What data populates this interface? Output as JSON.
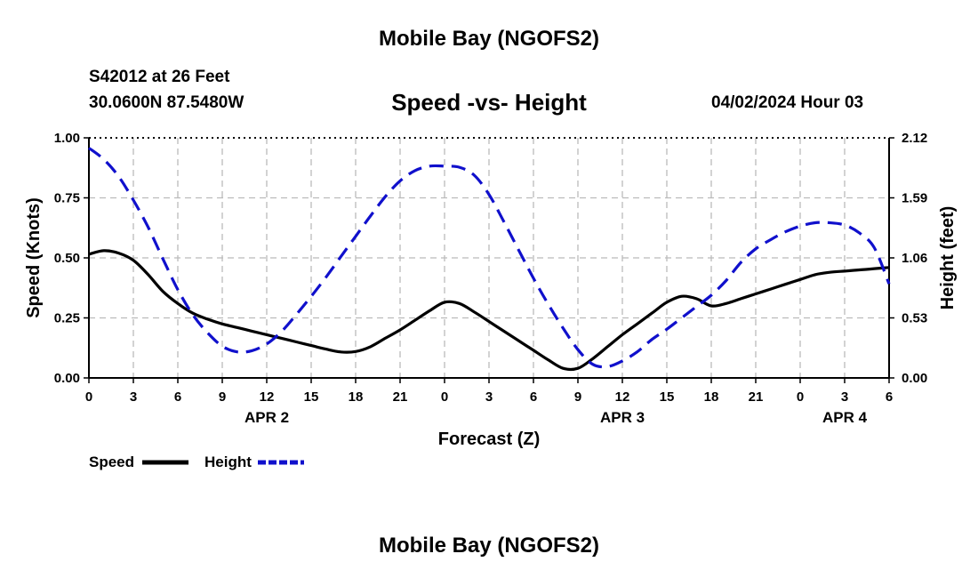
{
  "header": {
    "title": "Mobile Bay (NGOFS2)",
    "station": "S42012 at 26 Feet",
    "coords": "30.0600N  87.5480W",
    "chart_title": "Speed -vs- Height",
    "datetime": "04/02/2024 Hour 03"
  },
  "footer": {
    "title": "Mobile Bay (NGOFS2)"
  },
  "colors": {
    "speed": "#000000",
    "height": "#1010cc",
    "grid": "#bbbbbb"
  },
  "chart_data": {
    "type": "line",
    "title": "Speed -vs- Height",
    "xlabel": "Forecast (Z)",
    "ylabel_left": "Speed (Knots)",
    "ylabel_right": "Height (feet)",
    "x_range_hours": [
      0,
      54
    ],
    "x_ticks": [
      {
        "h": 0,
        "label": "0"
      },
      {
        "h": 3,
        "label": "3"
      },
      {
        "h": 6,
        "label": "6"
      },
      {
        "h": 9,
        "label": "9"
      },
      {
        "h": 12,
        "label": "12"
      },
      {
        "h": 15,
        "label": "15"
      },
      {
        "h": 18,
        "label": "18"
      },
      {
        "h": 21,
        "label": "21"
      },
      {
        "h": 24,
        "label": "0"
      },
      {
        "h": 27,
        "label": "3"
      },
      {
        "h": 30,
        "label": "6"
      },
      {
        "h": 33,
        "label": "9"
      },
      {
        "h": 36,
        "label": "12"
      },
      {
        "h": 39,
        "label": "15"
      },
      {
        "h": 42,
        "label": "18"
      },
      {
        "h": 45,
        "label": "21"
      },
      {
        "h": 48,
        "label": "0"
      },
      {
        "h": 51,
        "label": "3"
      },
      {
        "h": 54,
        "label": "6"
      }
    ],
    "date_labels": [
      {
        "h": 12,
        "label": "APR 2"
      },
      {
        "h": 36,
        "label": "APR 3"
      },
      {
        "h": 51,
        "label": "APR 4"
      }
    ],
    "y_left": {
      "range": [
        0,
        1
      ],
      "ticks": [
        "0.00",
        "0.25",
        "0.50",
        "0.75",
        "1.00"
      ]
    },
    "y_right": {
      "range": [
        0,
        2.12
      ],
      "ticks": [
        "0.00",
        "0.53",
        "1.06",
        "1.59",
        "2.12"
      ]
    },
    "series": [
      {
        "name": "Speed",
        "axis": "left",
        "style": "solid",
        "x": [
          0,
          1,
          2,
          3,
          4,
          5,
          6,
          7,
          8,
          9,
          10,
          11,
          12,
          13,
          14,
          15,
          16,
          17,
          18,
          19,
          20,
          21,
          22,
          23,
          24,
          25,
          26,
          27,
          28,
          29,
          30,
          31,
          32,
          33,
          34,
          35,
          36,
          37,
          38,
          39,
          40,
          41,
          42,
          43,
          44,
          45,
          46,
          47,
          48,
          49,
          50,
          51,
          52,
          53,
          54
        ],
        "values": [
          0.515,
          0.53,
          0.52,
          0.49,
          0.43,
          0.36,
          0.31,
          0.27,
          0.245,
          0.225,
          0.21,
          0.195,
          0.18,
          0.165,
          0.15,
          0.135,
          0.12,
          0.108,
          0.11,
          0.13,
          0.165,
          0.2,
          0.24,
          0.28,
          0.315,
          0.31,
          0.275,
          0.235,
          0.195,
          0.155,
          0.115,
          0.075,
          0.04,
          0.04,
          0.08,
          0.13,
          0.18,
          0.225,
          0.27,
          0.315,
          0.34,
          0.33,
          0.3,
          0.31,
          0.33,
          0.35,
          0.37,
          0.39,
          0.41,
          0.43,
          0.44,
          0.445,
          0.45,
          0.455,
          0.46
        ]
      },
      {
        "name": "Height",
        "axis": "right",
        "style": "dashed",
        "x": [
          0,
          1,
          2,
          3,
          4,
          5,
          6,
          7,
          8,
          9,
          10,
          11,
          12,
          13,
          14,
          15,
          16,
          17,
          18,
          19,
          20,
          21,
          22,
          23,
          24,
          25,
          26,
          27,
          28,
          29,
          30,
          31,
          32,
          33,
          34,
          35,
          36,
          37,
          38,
          39,
          40,
          41,
          42,
          43,
          44,
          45,
          46,
          47,
          48,
          49,
          50,
          51,
          52,
          53,
          54
        ],
        "values": [
          2.03,
          1.93,
          1.78,
          1.57,
          1.33,
          1.05,
          0.78,
          0.56,
          0.4,
          0.28,
          0.23,
          0.24,
          0.3,
          0.41,
          0.56,
          0.72,
          0.89,
          1.07,
          1.25,
          1.43,
          1.6,
          1.74,
          1.83,
          1.87,
          1.87,
          1.86,
          1.79,
          1.62,
          1.38,
          1.13,
          0.88,
          0.65,
          0.44,
          0.25,
          0.12,
          0.1,
          0.15,
          0.23,
          0.34,
          0.43,
          0.53,
          0.63,
          0.73,
          0.86,
          1.02,
          1.14,
          1.22,
          1.29,
          1.34,
          1.37,
          1.37,
          1.35,
          1.28,
          1.15,
          0.83
        ]
      }
    ],
    "legend": [
      {
        "name": "Speed"
      },
      {
        "name": "Height"
      }
    ]
  }
}
